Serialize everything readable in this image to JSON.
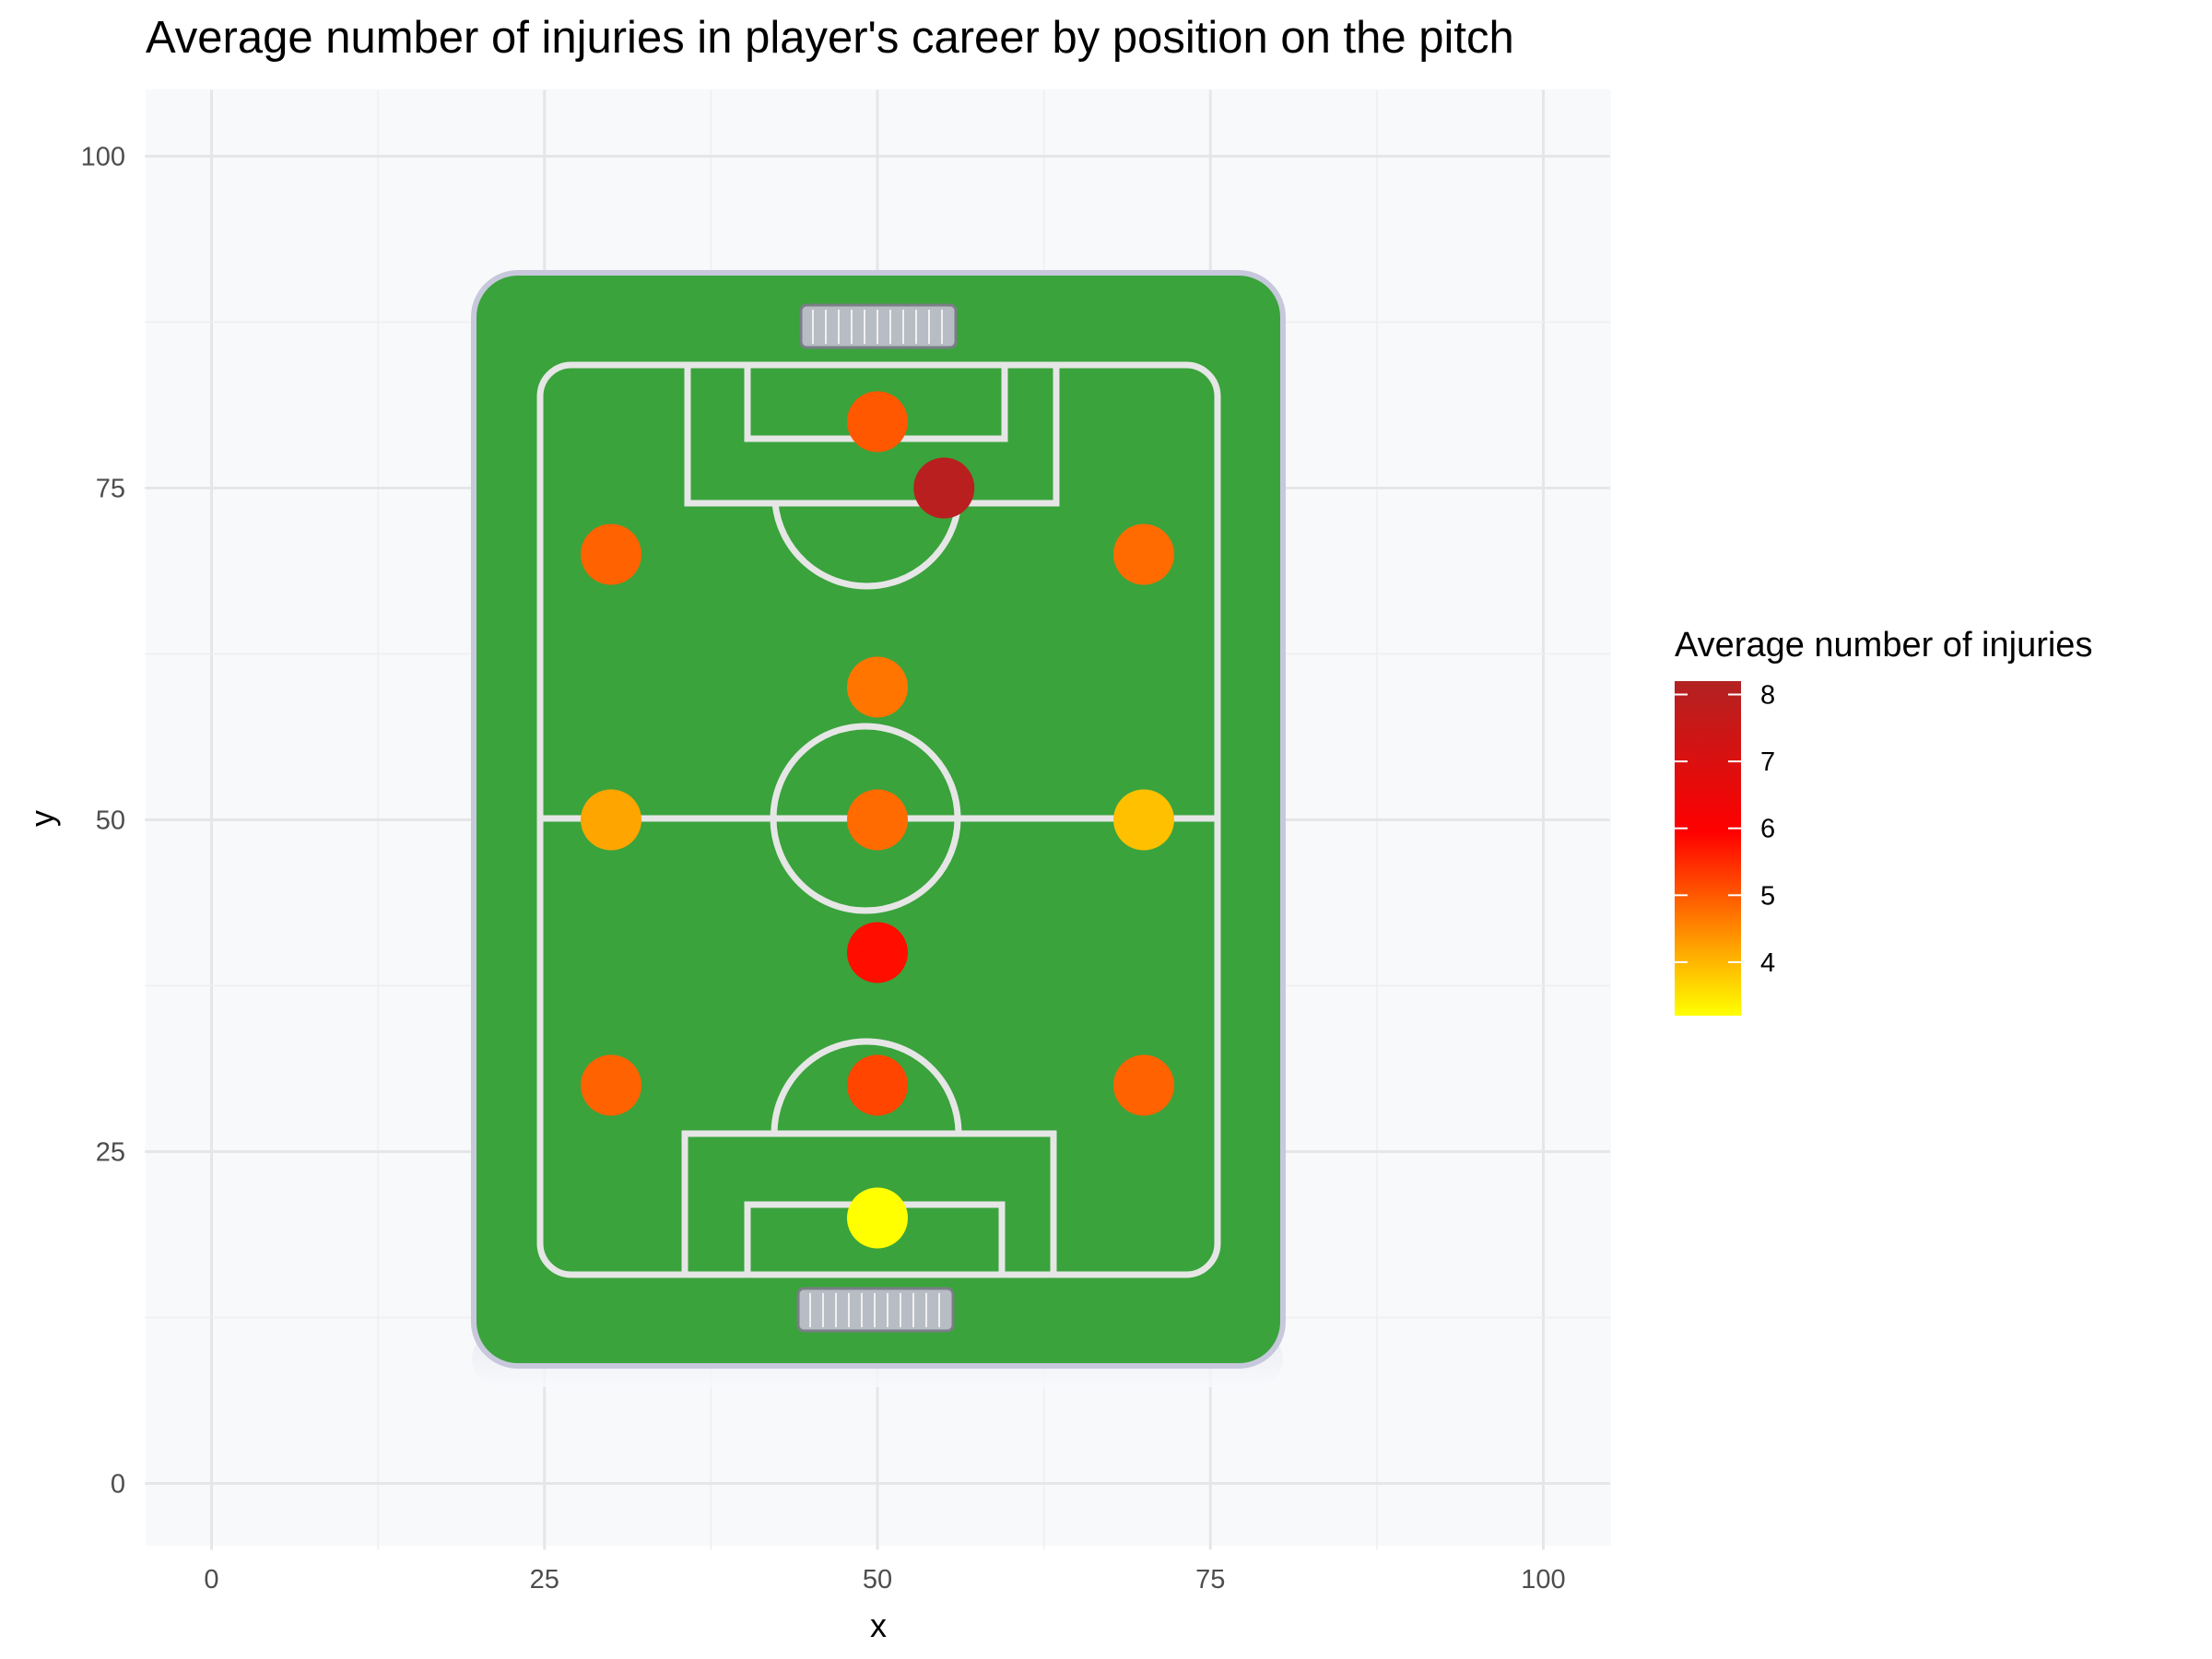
{
  "chart_data": {
    "type": "scatter",
    "title": "Average number of injuries in player's career by position on the pitch",
    "xlabel": "x",
    "ylabel": "y",
    "xlim": [
      -5,
      105
    ],
    "ylim": [
      -5,
      105
    ],
    "x_ticks": [
      0,
      25,
      50,
      75,
      100
    ],
    "y_ticks": [
      0,
      25,
      50,
      75,
      100
    ],
    "grid": true,
    "background_image": "football-pitch",
    "legend": {
      "title": "Average number of injuries",
      "position": "right",
      "ticks": [
        4,
        5,
        6,
        7,
        8
      ],
      "range": [
        3.2,
        8.2
      ],
      "colors": [
        "#ffff00",
        "#ffa500",
        "#ff4500",
        "#ff0000",
        "#b22222"
      ]
    },
    "points": [
      {
        "x": 50,
        "y": 20,
        "value": 3.2
      },
      {
        "x": 30,
        "y": 30,
        "value": 4.9
      },
      {
        "x": 50,
        "y": 30,
        "value": 5.2
      },
      {
        "x": 70,
        "y": 30,
        "value": 4.9
      },
      {
        "x": 50,
        "y": 40,
        "value": 5.8
      },
      {
        "x": 30,
        "y": 50,
        "value": 4.2
      },
      {
        "x": 50,
        "y": 50,
        "value": 4.8
      },
      {
        "x": 70,
        "y": 50,
        "value": 3.9
      },
      {
        "x": 50,
        "y": 60,
        "value": 4.7
      },
      {
        "x": 30,
        "y": 70,
        "value": 4.9
      },
      {
        "x": 70,
        "y": 70,
        "value": 4.8
      },
      {
        "x": 50,
        "y": 80,
        "value": 5.0
      },
      {
        "x": 55,
        "y": 75,
        "value": 8.0
      }
    ]
  }
}
